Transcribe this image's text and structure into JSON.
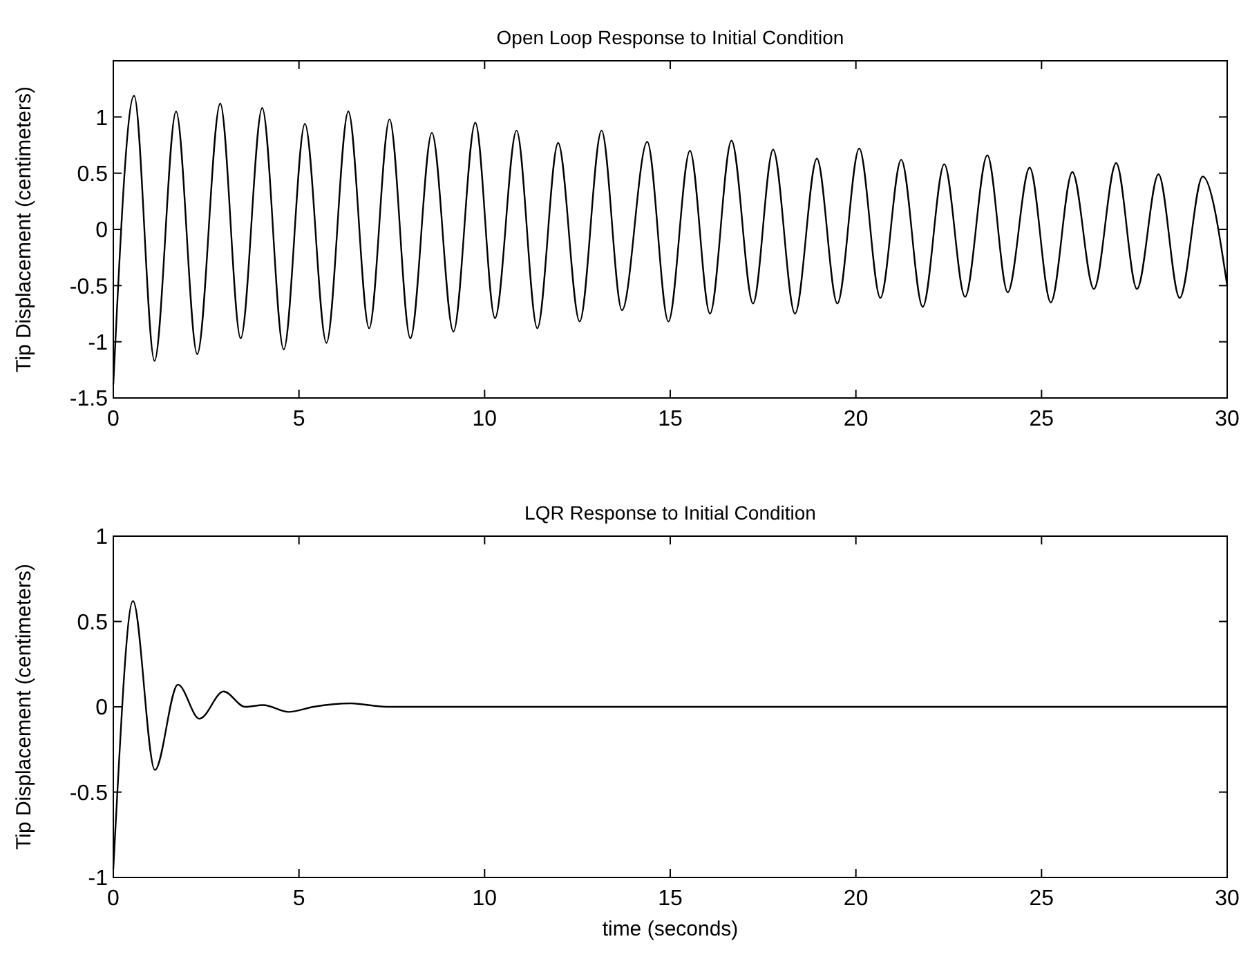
{
  "chart_data": [
    {
      "type": "line",
      "title": "Open Loop Response to Initial Condition",
      "ylabel": "Tip Displacement (centimeters)",
      "xlim": [
        0,
        30
      ],
      "xticks": [
        0,
        5,
        10,
        15,
        20,
        25,
        30
      ],
      "ylim": [
        -1.5,
        1.5
      ],
      "yticks": [
        -1.5,
        -1,
        -0.5,
        0,
        0.5,
        1
      ],
      "series": [
        {
          "color": "#000000",
          "x": [
            0,
            0.56,
            1.11,
            1.69,
            2.26,
            2.88,
            3.43,
            4.01,
            4.59,
            5.16,
            5.74,
            6.33,
            6.89,
            7.44,
            8.0,
            8.58,
            9.16,
            9.75,
            10.28,
            10.86,
            11.42,
            11.98,
            12.56,
            13.15,
            13.7,
            14.38,
            14.95,
            15.53,
            16.07,
            16.65,
            17.23,
            17.77,
            18.36,
            18.95,
            19.5,
            20.09,
            20.66,
            21.22,
            21.8,
            22.38,
            22.94,
            23.54,
            24.09,
            24.68,
            25.25,
            25.83,
            26.41,
            27.01,
            27.57,
            28.15,
            28.72,
            29.34,
            30
          ],
          "values": [
            -1.38,
            1.19,
            -1.17,
            1.05,
            -1.11,
            1.12,
            -0.97,
            1.08,
            -1.07,
            0.94,
            -1.01,
            1.05,
            -0.88,
            0.98,
            -0.97,
            0.86,
            -0.91,
            0.95,
            -0.79,
            0.88,
            -0.88,
            0.77,
            -0.82,
            0.88,
            -0.72,
            0.78,
            -0.82,
            0.7,
            -0.75,
            0.79,
            -0.66,
            0.71,
            -0.75,
            0.63,
            -0.66,
            0.72,
            -0.61,
            0.62,
            -0.69,
            0.58,
            -0.6,
            0.66,
            -0.56,
            0.55,
            -0.65,
            0.51,
            -0.53,
            0.59,
            -0.53,
            0.49,
            -0.61,
            0.47,
            -0.5
          ]
        }
      ]
    },
    {
      "type": "line",
      "title": "LQR Response to Initial Condition",
      "xlabel": "time (seconds)",
      "ylabel": "Tip Displacement (centimeters)",
      "xlim": [
        0,
        30
      ],
      "xticks": [
        0,
        5,
        10,
        15,
        20,
        25,
        30
      ],
      "ylim": [
        -1,
        1
      ],
      "yticks": [
        -1,
        -0.5,
        0,
        0.5,
        1
      ],
      "series": [
        {
          "color": "#000000",
          "x": [
            0,
            0.06,
            0.53,
            1.12,
            1.74,
            2.32,
            2.97,
            3.55,
            4.04,
            4.72,
            5.39,
            6.38,
            7.36,
            10,
            15,
            20,
            25,
            30
          ],
          "values": [
            -0.95,
            -0.7,
            0.62,
            -0.37,
            0.13,
            -0.07,
            0.09,
            0,
            0.01,
            -0.03,
            0,
            0.02,
            0,
            0,
            0,
            0,
            0,
            0
          ]
        }
      ]
    }
  ]
}
